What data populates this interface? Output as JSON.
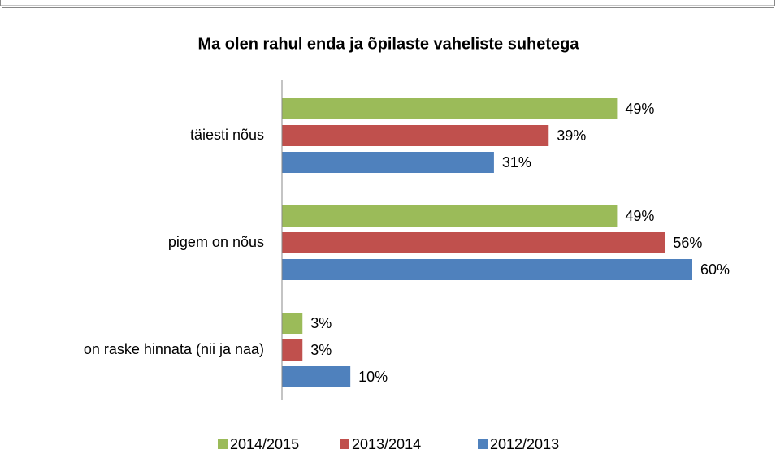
{
  "chart_data": {
    "type": "bar",
    "orientation": "horizontal",
    "title": "Ma olen rahul enda ja õpilaste vaheliste suhetega",
    "categories": [
      "täiesti nõus",
      "pigem on nõus",
      "on raske hinnata (nii ja naa)"
    ],
    "series": [
      {
        "name": "2014/2015",
        "color": "#9bbb59",
        "values": [
          49,
          49,
          3
        ],
        "value_labels": [
          "49%",
          "49%",
          "3%"
        ]
      },
      {
        "name": "2013/2014",
        "color": "#c0504d",
        "values": [
          39,
          56,
          3
        ],
        "value_labels": [
          "39%",
          "56%",
          "3%"
        ]
      },
      {
        "name": "2012/2013",
        "color": "#4f81bd",
        "values": [
          31,
          60,
          10
        ],
        "value_labels": [
          "31%",
          "60%",
          "10%"
        ]
      }
    ],
    "xlim": [
      0,
      60
    ],
    "legend": "bottom"
  }
}
